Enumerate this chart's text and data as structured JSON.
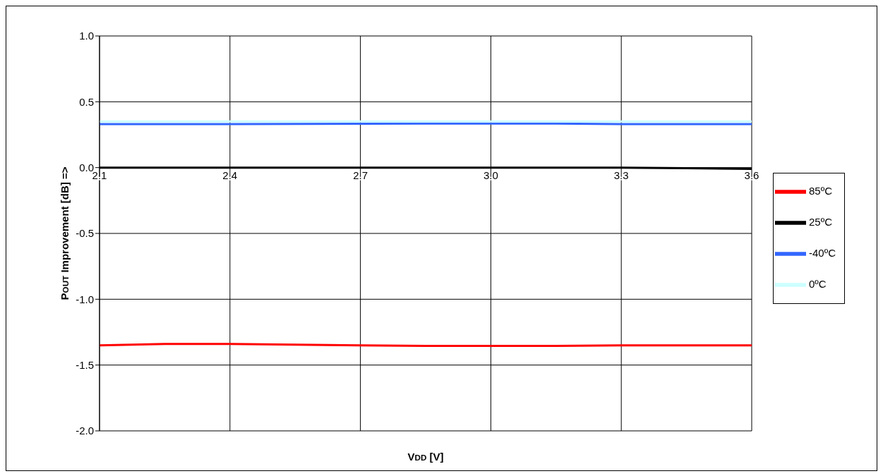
{
  "chart_data": {
    "type": "line",
    "xlabel": "VDD [V]",
    "ylabel": "POUT Improvement [dB] =>",
    "x": [
      2.1,
      2.25,
      2.4,
      2.55,
      2.7,
      2.85,
      3.0,
      3.15,
      3.3,
      3.45,
      3.6
    ],
    "series": [
      {
        "name": "85ºC",
        "color": "#ff0000",
        "values": [
          -1.35,
          -1.34,
          -1.34,
          -1.345,
          -1.35,
          -1.355,
          -1.355,
          -1.355,
          -1.35,
          -1.35,
          -1.35
        ]
      },
      {
        "name": "25ºC",
        "color": "#000000",
        "values": [
          0,
          0,
          0,
          0,
          0,
          0,
          0,
          0,
          0,
          -0.005,
          -0.01
        ]
      },
      {
        "name": "-40ºC",
        "color": "#3366ff",
        "values": [
          0.33,
          0.33,
          0.33,
          0.332,
          0.333,
          0.334,
          0.335,
          0.335,
          0.33,
          0.33,
          0.33
        ]
      },
      {
        "name": "0ºC",
        "color": "#ccffff",
        "values": [
          0.35,
          0.35,
          0.35,
          0.35,
          0.35,
          0.35,
          0.35,
          0.35,
          0.35,
          0.35,
          0.35
        ]
      }
    ],
    "xlim": [
      2.1,
      3.6
    ],
    "xticks": [
      {
        "value": 2.1,
        "label": "2.1"
      },
      {
        "value": 2.4,
        "label": "2.4"
      },
      {
        "value": 2.7,
        "label": "2.7"
      },
      {
        "value": 3.0,
        "label": "3.0"
      },
      {
        "value": 3.3,
        "label": "3.3"
      },
      {
        "value": 3.6,
        "label": "3.6"
      }
    ],
    "ylim": [
      -2,
      1
    ],
    "yticks": [
      {
        "value": -2,
        "label": "-2.0"
      },
      {
        "value": -1.5,
        "label": "-1.5"
      },
      {
        "value": -1,
        "label": "-1.0"
      },
      {
        "value": -0.5,
        "label": "-0.5"
      },
      {
        "value": 0,
        "label": "0.0"
      },
      {
        "value": 0.5,
        "label": "0.5"
      },
      {
        "value": 1,
        "label": "1.0"
      }
    ],
    "grid": true,
    "legend": "right",
    "marker": "none",
    "line_style": "solid"
  }
}
